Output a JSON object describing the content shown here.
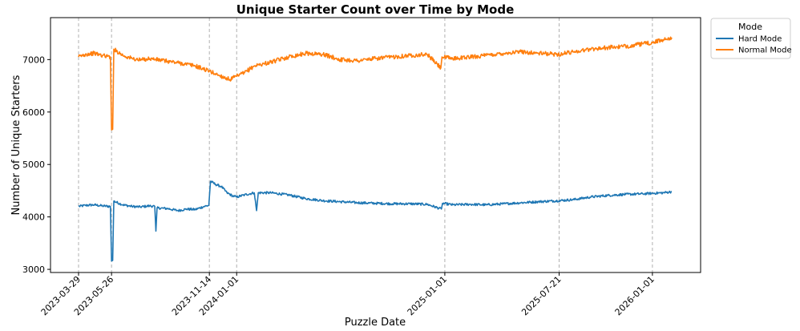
{
  "chart_data": {
    "type": "line",
    "title": "Unique Starter Count over Time by Mode",
    "xlabel": "Puzzle Date",
    "ylabel": "Number of Unique Starters",
    "x_range": [
      "2023-03-29",
      "2026-02-04"
    ],
    "ylim": [
      2940,
      7800
    ],
    "yticks": [
      3000,
      4000,
      5000,
      6000,
      7000
    ],
    "xticks": [
      "2023-03-29",
      "2023-05-26",
      "2023-11-14",
      "2024-01-01",
      "2025-01-01",
      "2025-07-21",
      "2026-01-01"
    ],
    "vlines": [
      "2023-03-29",
      "2023-05-26",
      "2023-11-14",
      "2024-01-01",
      "2025-01-01",
      "2025-07-21",
      "2026-01-01"
    ],
    "grid": false,
    "legend_title": "Mode",
    "legend_placement": "outside-top-right",
    "colors": {
      "Hard Mode": "#1f77b4",
      "Normal Mode": "#ff7f0e",
      "vline": "#b0b0b0"
    },
    "series": [
      {
        "name": "Hard Mode",
        "points": [
          [
            "2023-03-29",
            4200
          ],
          [
            "2023-04-10",
            4220
          ],
          [
            "2023-04-25",
            4230
          ],
          [
            "2023-05-10",
            4210
          ],
          [
            "2023-05-24",
            4200
          ],
          [
            "2023-05-26",
            3160
          ],
          [
            "2023-05-28",
            3170
          ],
          [
            "2023-05-30",
            4300
          ],
          [
            "2023-06-15",
            4230
          ],
          [
            "2023-07-01",
            4200
          ],
          [
            "2023-07-15",
            4190
          ],
          [
            "2023-08-01",
            4210
          ],
          [
            "2023-08-10",
            4200
          ],
          [
            "2023-08-12",
            3730
          ],
          [
            "2023-08-14",
            4170
          ],
          [
            "2023-09-01",
            4160
          ],
          [
            "2023-09-20",
            4120
          ],
          [
            "2023-10-05",
            4150
          ],
          [
            "2023-10-20",
            4140
          ],
          [
            "2023-11-05",
            4200
          ],
          [
            "2023-11-13",
            4220
          ],
          [
            "2023-11-16",
            4680
          ],
          [
            "2023-11-25",
            4620
          ],
          [
            "2023-12-05",
            4580
          ],
          [
            "2023-12-15",
            4460
          ],
          [
            "2023-12-25",
            4400
          ],
          [
            "2024-01-01",
            4380
          ],
          [
            "2024-01-15",
            4420
          ],
          [
            "2024-02-01",
            4460
          ],
          [
            "2024-02-05",
            4120
          ],
          [
            "2024-02-08",
            4460
          ],
          [
            "2024-03-01",
            4460
          ],
          [
            "2024-04-01",
            4420
          ],
          [
            "2024-05-01",
            4350
          ],
          [
            "2024-06-01",
            4310
          ],
          [
            "2024-07-01",
            4290
          ],
          [
            "2024-08-01",
            4270
          ],
          [
            "2024-09-01",
            4260
          ],
          [
            "2024-10-01",
            4250
          ],
          [
            "2024-11-01",
            4250
          ],
          [
            "2024-12-01",
            4240
          ],
          [
            "2024-12-26",
            4150
          ],
          [
            "2024-12-28",
            4260
          ],
          [
            "2025-01-15",
            4230
          ],
          [
            "2025-02-15",
            4240
          ],
          [
            "2025-03-15",
            4230
          ],
          [
            "2025-04-15",
            4250
          ],
          [
            "2025-05-15",
            4270
          ],
          [
            "2025-06-15",
            4290
          ],
          [
            "2025-07-21",
            4310
          ],
          [
            "2025-08-15",
            4330
          ],
          [
            "2025-09-15",
            4380
          ],
          [
            "2025-10-15",
            4410
          ],
          [
            "2025-11-15",
            4430
          ],
          [
            "2025-12-15",
            4440
          ],
          [
            "2026-01-01",
            4450
          ],
          [
            "2026-01-20",
            4460
          ],
          [
            "2026-02-04",
            4480
          ]
        ]
      },
      {
        "name": "Normal Mode",
        "points": [
          [
            "2023-03-29",
            7050
          ],
          [
            "2023-04-10",
            7100
          ],
          [
            "2023-04-25",
            7120
          ],
          [
            "2023-05-10",
            7080
          ],
          [
            "2023-05-24",
            7050
          ],
          [
            "2023-05-26",
            5660
          ],
          [
            "2023-05-28",
            5670
          ],
          [
            "2023-05-30",
            7200
          ],
          [
            "2023-06-15",
            7080
          ],
          [
            "2023-07-01",
            7020
          ],
          [
            "2023-07-15",
            6990
          ],
          [
            "2023-08-01",
            7020
          ],
          [
            "2023-09-01",
            6970
          ],
          [
            "2023-10-01",
            6920
          ],
          [
            "2023-10-20",
            6880
          ],
          [
            "2023-11-14",
            6780
          ],
          [
            "2023-12-01",
            6700
          ],
          [
            "2023-12-20",
            6620
          ],
          [
            "2024-01-01",
            6680
          ],
          [
            "2024-01-15",
            6750
          ],
          [
            "2024-02-01",
            6880
          ],
          [
            "2024-03-01",
            6950
          ],
          [
            "2024-04-01",
            7050
          ],
          [
            "2024-05-01",
            7120
          ],
          [
            "2024-06-01",
            7100
          ],
          [
            "2024-07-01",
            7000
          ],
          [
            "2024-08-01",
            6980
          ],
          [
            "2024-09-01",
            7020
          ],
          [
            "2024-10-01",
            7050
          ],
          [
            "2024-11-01",
            7080
          ],
          [
            "2024-12-01",
            7100
          ],
          [
            "2024-12-25",
            6840
          ],
          [
            "2024-12-27",
            7050
          ],
          [
            "2025-01-15",
            7020
          ],
          [
            "2025-02-15",
            7050
          ],
          [
            "2025-03-15",
            7080
          ],
          [
            "2025-04-15",
            7120
          ],
          [
            "2025-05-15",
            7150
          ],
          [
            "2025-06-15",
            7120
          ],
          [
            "2025-07-21",
            7100
          ],
          [
            "2025-08-15",
            7150
          ],
          [
            "2025-09-15",
            7200
          ],
          [
            "2025-10-15",
            7230
          ],
          [
            "2025-11-15",
            7250
          ],
          [
            "2025-12-15",
            7300
          ],
          [
            "2026-01-01",
            7320
          ],
          [
            "2026-01-20",
            7380
          ],
          [
            "2026-02-04",
            7420
          ]
        ]
      }
    ]
  }
}
